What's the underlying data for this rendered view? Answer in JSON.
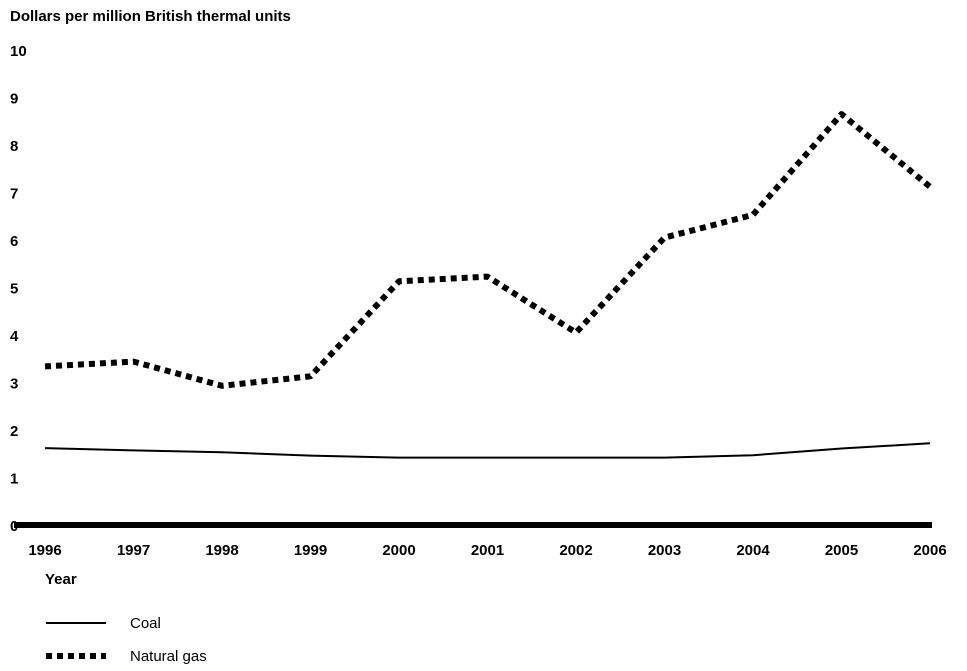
{
  "chart_data": {
    "type": "line",
    "ylabel": "Dollars per million British thermal units",
    "xlabel": "Year",
    "x": [
      "1996",
      "1997",
      "1998",
      "1999",
      "2000",
      "2001",
      "2002",
      "2003",
      "2004",
      "2005",
      "2006"
    ],
    "ylim": [
      0,
      10
    ],
    "yticks": [
      "0",
      "1",
      "2",
      "3",
      "4",
      "5",
      "6",
      "7",
      "8",
      "9",
      "10"
    ],
    "grid": false,
    "legend_position": "bottom-left",
    "series": [
      {
        "name": "Coal",
        "style": "solid",
        "values": [
          1.62,
          1.57,
          1.53,
          1.46,
          1.42,
          1.42,
          1.42,
          1.42,
          1.47,
          1.61,
          1.72
        ]
      },
      {
        "name": "Natural gas",
        "style": "dotted",
        "values": [
          3.34,
          3.44,
          2.93,
          3.13,
          5.13,
          5.23,
          4.05,
          6.05,
          6.53,
          8.65,
          7.12
        ]
      }
    ],
    "colors": {
      "line": "#000000",
      "background": "#ffffff"
    }
  }
}
